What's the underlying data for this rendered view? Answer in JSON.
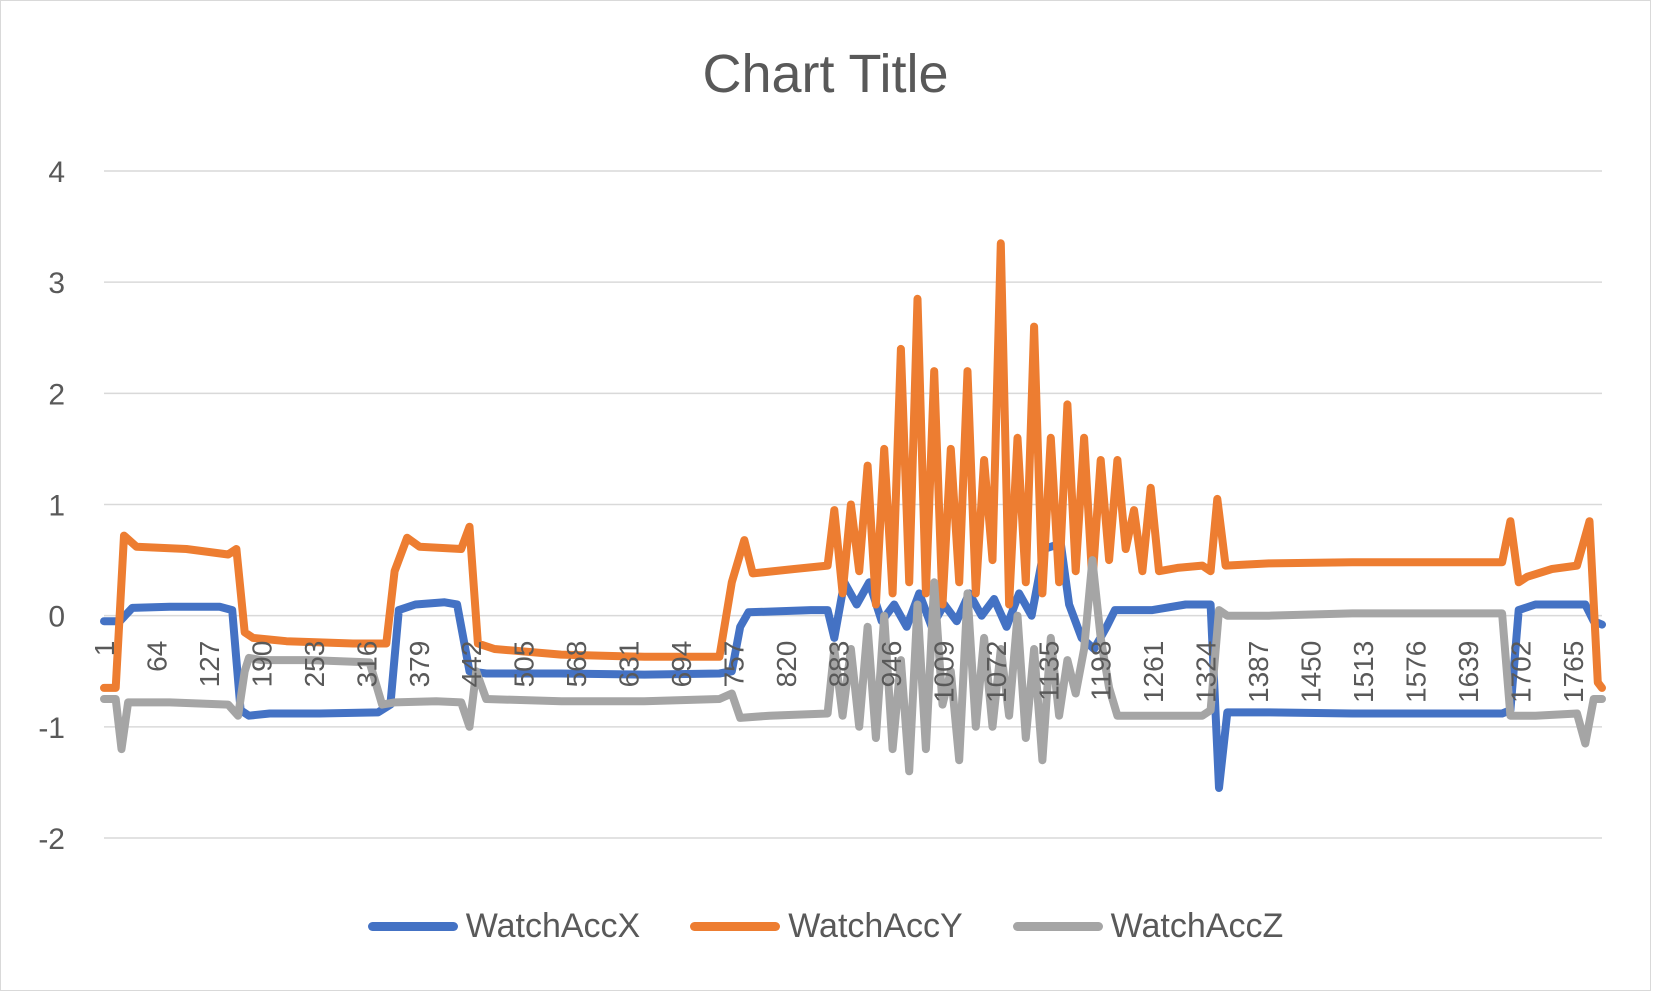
{
  "chart_data": {
    "type": "line",
    "title": "Chart Title",
    "xlabel": "",
    "ylabel": "",
    "ylim": [
      -2,
      4
    ],
    "yticks": [
      -2,
      -1,
      0,
      1,
      2,
      3,
      4
    ],
    "xlim": [
      1,
      1800
    ],
    "xticks": [
      1,
      64,
      127,
      190,
      253,
      316,
      379,
      442,
      505,
      568,
      631,
      694,
      757,
      820,
      883,
      946,
      1009,
      1072,
      1135,
      1198,
      1261,
      1324,
      1387,
      1450,
      1513,
      1576,
      1639,
      1702,
      1765
    ],
    "grid": true,
    "legend_position": "bottom",
    "series": [
      {
        "name": "WatchAccX",
        "color": "#4472c4",
        "points": [
          [
            1,
            -0.05
          ],
          [
            20,
            -0.05
          ],
          [
            35,
            0.07
          ],
          [
            80,
            0.08
          ],
          [
            140,
            0.08
          ],
          [
            155,
            0.05
          ],
          [
            165,
            -0.85
          ],
          [
            175,
            -0.9
          ],
          [
            200,
            -0.88
          ],
          [
            260,
            -0.88
          ],
          [
            330,
            -0.87
          ],
          [
            345,
            -0.8
          ],
          [
            355,
            0.05
          ],
          [
            375,
            0.1
          ],
          [
            410,
            0.12
          ],
          [
            425,
            0.1
          ],
          [
            440,
            -0.5
          ],
          [
            460,
            -0.52
          ],
          [
            550,
            -0.52
          ],
          [
            650,
            -0.53
          ],
          [
            740,
            -0.52
          ],
          [
            755,
            -0.5
          ],
          [
            765,
            -0.1
          ],
          [
            775,
            0.03
          ],
          [
            850,
            0.05
          ],
          [
            870,
            0.05
          ],
          [
            878,
            -0.2
          ],
          [
            890,
            0.3
          ],
          [
            905,
            0.1
          ],
          [
            920,
            0.3
          ],
          [
            935,
            -0.05
          ],
          [
            950,
            0.1
          ],
          [
            965,
            -0.1
          ],
          [
            980,
            0.2
          ],
          [
            995,
            -0.1
          ],
          [
            1010,
            0.1
          ],
          [
            1025,
            -0.05
          ],
          [
            1040,
            0.2
          ],
          [
            1055,
            0.0
          ],
          [
            1070,
            0.15
          ],
          [
            1085,
            -0.1
          ],
          [
            1100,
            0.2
          ],
          [
            1115,
            0.0
          ],
          [
            1130,
            0.6
          ],
          [
            1150,
            0.65
          ],
          [
            1160,
            0.1
          ],
          [
            1175,
            -0.2
          ],
          [
            1190,
            -0.3
          ],
          [
            1205,
            -0.1
          ],
          [
            1215,
            0.05
          ],
          [
            1260,
            0.05
          ],
          [
            1300,
            0.1
          ],
          [
            1330,
            0.1
          ],
          [
            1340,
            -1.55
          ],
          [
            1350,
            -0.87
          ],
          [
            1400,
            -0.87
          ],
          [
            1500,
            -0.88
          ],
          [
            1600,
            -0.88
          ],
          [
            1680,
            -0.88
          ],
          [
            1690,
            -0.85
          ],
          [
            1700,
            0.05
          ],
          [
            1720,
            0.1
          ],
          [
            1780,
            0.1
          ],
          [
            1790,
            -0.05
          ],
          [
            1800,
            -0.08
          ]
        ]
      },
      {
        "name": "WatchAccY",
        "color": "#ed7d31",
        "points": [
          [
            1,
            -0.65
          ],
          [
            15,
            -0.65
          ],
          [
            25,
            0.72
          ],
          [
            40,
            0.62
          ],
          [
            100,
            0.6
          ],
          [
            150,
            0.55
          ],
          [
            160,
            0.6
          ],
          [
            170,
            -0.15
          ],
          [
            180,
            -0.2
          ],
          [
            220,
            -0.23
          ],
          [
            300,
            -0.25
          ],
          [
            340,
            -0.25
          ],
          [
            350,
            0.4
          ],
          [
            360,
            0.6
          ],
          [
            365,
            0.7
          ],
          [
            380,
            0.62
          ],
          [
            430,
            0.6
          ],
          [
            440,
            0.8
          ],
          [
            450,
            -0.25
          ],
          [
            470,
            -0.3
          ],
          [
            550,
            -0.35
          ],
          [
            650,
            -0.37
          ],
          [
            740,
            -0.37
          ],
          [
            755,
            0.3
          ],
          [
            770,
            0.68
          ],
          [
            780,
            0.38
          ],
          [
            830,
            0.42
          ],
          [
            870,
            0.45
          ],
          [
            878,
            0.95
          ],
          [
            888,
            0.2
          ],
          [
            898,
            1.0
          ],
          [
            908,
            0.4
          ],
          [
            918,
            1.35
          ],
          [
            928,
            0.1
          ],
          [
            938,
            1.5
          ],
          [
            948,
            0.2
          ],
          [
            958,
            2.4
          ],
          [
            968,
            0.3
          ],
          [
            978,
            2.85
          ],
          [
            988,
            0.2
          ],
          [
            998,
            2.2
          ],
          [
            1008,
            0.1
          ],
          [
            1018,
            1.5
          ],
          [
            1028,
            0.3
          ],
          [
            1038,
            2.2
          ],
          [
            1048,
            0.2
          ],
          [
            1058,
            1.4
          ],
          [
            1068,
            0.5
          ],
          [
            1078,
            3.35
          ],
          [
            1088,
            0.1
          ],
          [
            1098,
            1.6
          ],
          [
            1108,
            0.3
          ],
          [
            1118,
            2.6
          ],
          [
            1128,
            0.2
          ],
          [
            1138,
            1.6
          ],
          [
            1148,
            0.3
          ],
          [
            1158,
            1.9
          ],
          [
            1168,
            0.4
          ],
          [
            1178,
            1.6
          ],
          [
            1188,
            0.3
          ],
          [
            1198,
            1.4
          ],
          [
            1208,
            0.5
          ],
          [
            1218,
            1.4
          ],
          [
            1228,
            0.6
          ],
          [
            1238,
            0.95
          ],
          [
            1248,
            0.4
          ],
          [
            1258,
            1.15
          ],
          [
            1268,
            0.4
          ],
          [
            1290,
            0.43
          ],
          [
            1320,
            0.45
          ],
          [
            1330,
            0.4
          ],
          [
            1338,
            1.05
          ],
          [
            1348,
            0.45
          ],
          [
            1400,
            0.47
          ],
          [
            1500,
            0.48
          ],
          [
            1620,
            0.48
          ],
          [
            1680,
            0.48
          ],
          [
            1690,
            0.85
          ],
          [
            1700,
            0.3
          ],
          [
            1710,
            0.35
          ],
          [
            1740,
            0.42
          ],
          [
            1770,
            0.45
          ],
          [
            1785,
            0.85
          ],
          [
            1795,
            -0.6
          ],
          [
            1800,
            -0.65
          ]
        ]
      },
      {
        "name": "WatchAccZ",
        "color": "#a5a5a5",
        "points": [
          [
            1,
            -0.75
          ],
          [
            15,
            -0.75
          ],
          [
            22,
            -1.2
          ],
          [
            30,
            -0.78
          ],
          [
            80,
            -0.78
          ],
          [
            150,
            -0.8
          ],
          [
            162,
            -0.9
          ],
          [
            170,
            -0.5
          ],
          [
            175,
            -0.38
          ],
          [
            190,
            -0.4
          ],
          [
            250,
            -0.4
          ],
          [
            320,
            -0.42
          ],
          [
            335,
            -0.8
          ],
          [
            350,
            -0.78
          ],
          [
            400,
            -0.77
          ],
          [
            430,
            -0.78
          ],
          [
            440,
            -1.0
          ],
          [
            448,
            -0.5
          ],
          [
            460,
            -0.75
          ],
          [
            550,
            -0.77
          ],
          [
            650,
            -0.77
          ],
          [
            740,
            -0.75
          ],
          [
            755,
            -0.7
          ],
          [
            765,
            -0.92
          ],
          [
            800,
            -0.9
          ],
          [
            870,
            -0.88
          ],
          [
            878,
            -0.3
          ],
          [
            888,
            -0.9
          ],
          [
            898,
            -0.3
          ],
          [
            908,
            -1.0
          ],
          [
            918,
            -0.1
          ],
          [
            928,
            -1.1
          ],
          [
            938,
            0.0
          ],
          [
            948,
            -1.2
          ],
          [
            958,
            -0.4
          ],
          [
            968,
            -1.4
          ],
          [
            978,
            0.1
          ],
          [
            988,
            -1.2
          ],
          [
            998,
            0.3
          ],
          [
            1008,
            -0.8
          ],
          [
            1018,
            -0.5
          ],
          [
            1028,
            -1.3
          ],
          [
            1038,
            0.2
          ],
          [
            1048,
            -1.0
          ],
          [
            1058,
            -0.2
          ],
          [
            1068,
            -1.0
          ],
          [
            1078,
            -0.3
          ],
          [
            1088,
            -0.9
          ],
          [
            1098,
            0.0
          ],
          [
            1108,
            -1.1
          ],
          [
            1118,
            -0.3
          ],
          [
            1128,
            -1.3
          ],
          [
            1138,
            -0.2
          ],
          [
            1148,
            -0.9
          ],
          [
            1158,
            -0.4
          ],
          [
            1168,
            -0.7
          ],
          [
            1178,
            -0.3
          ],
          [
            1188,
            0.5
          ],
          [
            1198,
            -0.2
          ],
          [
            1208,
            -0.65
          ],
          [
            1218,
            -0.9
          ],
          [
            1260,
            -0.9
          ],
          [
            1320,
            -0.9
          ],
          [
            1330,
            -0.85
          ],
          [
            1340,
            0.05
          ],
          [
            1350,
            0.0
          ],
          [
            1400,
            0.0
          ],
          [
            1500,
            0.02
          ],
          [
            1600,
            0.02
          ],
          [
            1680,
            0.02
          ],
          [
            1690,
            -0.9
          ],
          [
            1720,
            -0.9
          ],
          [
            1770,
            -0.88
          ],
          [
            1780,
            -1.15
          ],
          [
            1790,
            -0.75
          ],
          [
            1800,
            -0.75
          ]
        ]
      }
    ]
  }
}
